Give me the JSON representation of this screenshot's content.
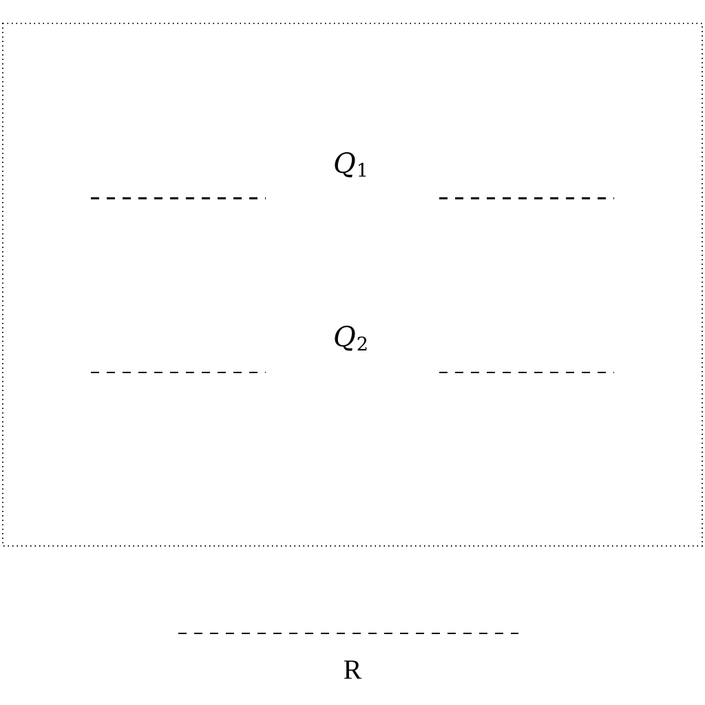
{
  "diagram": {
    "labels": {
      "q1": {
        "symbol": "Q",
        "subscript": "1"
      },
      "q2": {
        "symbol": "Q",
        "subscript": "2"
      },
      "r": "R"
    },
    "colors": {
      "stroke": "#000000",
      "background": "#ffffff"
    }
  }
}
